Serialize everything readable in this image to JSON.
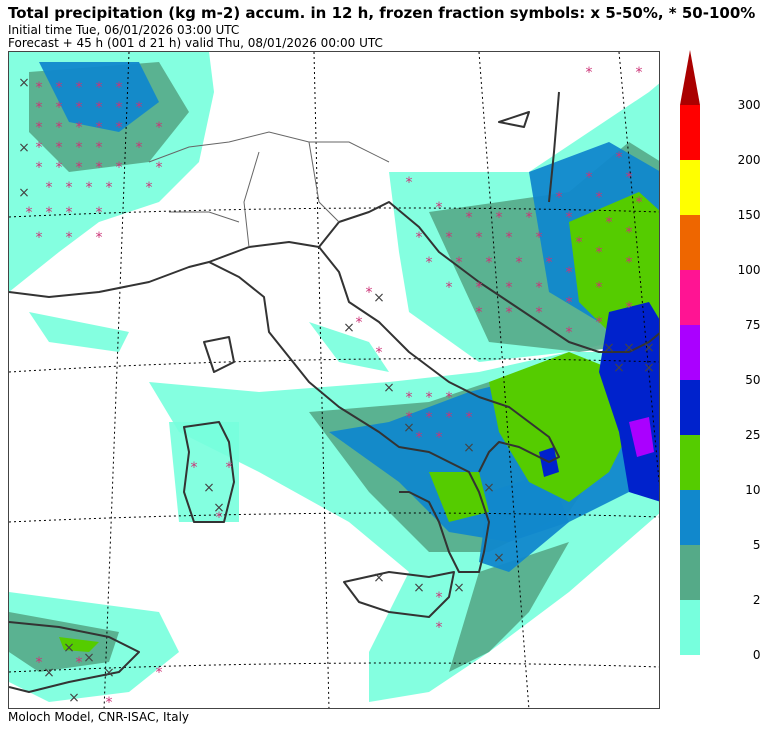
{
  "header": {
    "title": "Total precipitation (kg m-2) accum. in 12 h, frozen fraction symbols: x 5-50%, * 50-100%",
    "initial_time": "Initial time  Tue, 06/01/2026  03:00 UTC",
    "forecast": "Forecast  +  45 h  (001 d 21 h)  valid Thu, 08/01/2026 00:00 UTC"
  },
  "footer": {
    "credit": "Moloch Model, CNR-ISAC, Italy"
  },
  "legend": {
    "labels": [
      "300.0",
      "200.0",
      "150.0",
      "100.0",
      "75.0",
      "50.0",
      "25.0",
      "10.0",
      "5.0",
      "2.5",
      "0.5"
    ],
    "colors": [
      "#ff0000",
      "#ffff00",
      "#ee6600",
      "#ff1493",
      "#aa00ff",
      "#0022cc",
      "#55cc00",
      "#1188cc",
      "#55aa88",
      "#77ffdd"
    ],
    "arrow_color": "#aa0000"
  },
  "colors": {
    "very_light": "#77ffdd",
    "light": "#55aa88",
    "moderate": "#1188cc",
    "heavy": "#55cc00",
    "very_heavy": "#0022cc",
    "extreme": "#aa00ff",
    "frozen_high": "#cc3377",
    "frozen_low": "#444444",
    "coast": "#333333",
    "border": "#666666"
  }
}
